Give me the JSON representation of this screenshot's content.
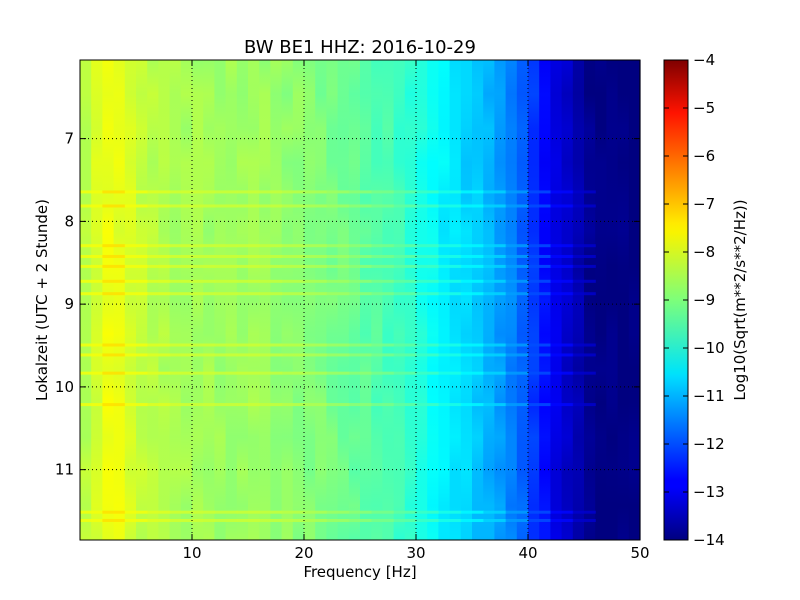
{
  "chart_data": {
    "type": "heatmap",
    "title": "BW BE1 HHZ: 2016-10-29",
    "xlabel": "Frequency [Hz]",
    "ylabel": "Lokalzeit (UTC + 2 Stunde)",
    "xlim": [
      0,
      50
    ],
    "ylim": [
      11.85,
      6.05
    ],
    "y_inverted": true,
    "x_ticks": [
      10,
      20,
      30,
      40,
      50
    ],
    "y_ticks": [
      7,
      8,
      9,
      10,
      11
    ],
    "grid": true,
    "colormap": "jet",
    "colorbar": {
      "label": "Log10(Sqrt(m**2/s**2/Hz))",
      "range": [
        -14,
        -4
      ],
      "ticks": [
        -4,
        -5,
        -6,
        -7,
        -8,
        -9,
        -10,
        -11,
        -12,
        -13,
        -14
      ]
    },
    "spectrum_profile": {
      "frequency_hz": [
        0,
        2,
        3,
        5,
        8,
        12,
        16,
        20,
        24,
        28,
        30,
        32,
        34,
        36,
        38,
        40,
        42,
        44,
        45,
        46,
        50
      ],
      "log10_amplitude": [
        -8.6,
        -8.0,
        -7.9,
        -8.3,
        -8.6,
        -8.7,
        -8.7,
        -8.9,
        -9.2,
        -9.6,
        -9.9,
        -10.3,
        -10.6,
        -10.9,
        -11.3,
        -12.0,
        -12.9,
        -13.4,
        -13.7,
        -14.0,
        -14.0
      ]
    },
    "noise_bands_hours": [
      7.65,
      7.82,
      8.3,
      8.43,
      8.55,
      8.73,
      8.88,
      9.5,
      9.62,
      9.84,
      10.22,
      11.52,
      11.62
    ]
  }
}
